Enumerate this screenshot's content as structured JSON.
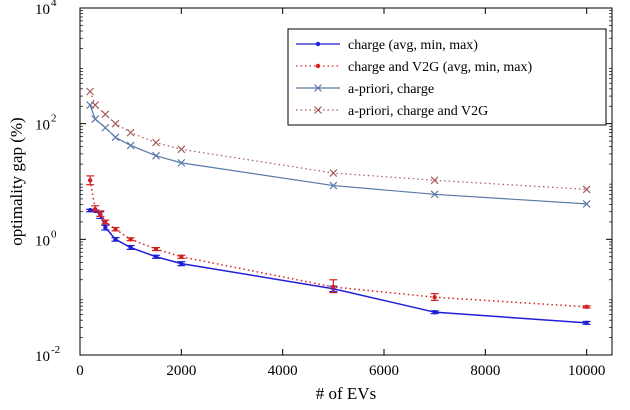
{
  "chart_data": {
    "type": "line",
    "xlabel": "# of EVs",
    "ylabel": "optimality gap (%)",
    "xlim": [
      0,
      10500
    ],
    "ylim": [
      0.01,
      10000
    ],
    "yscale": "log",
    "x_ticks": [
      {
        "value": 0,
        "label": "0"
      },
      {
        "value": 2000,
        "label": "2000"
      },
      {
        "value": 4000,
        "label": "4000"
      },
      {
        "value": 6000,
        "label": "6000"
      },
      {
        "value": 8000,
        "label": "8000"
      },
      {
        "value": 10000,
        "label": "10000"
      }
    ],
    "y_ticks": [
      {
        "value": 0.01,
        "base": "10",
        "exp": "-2"
      },
      {
        "value": 1,
        "base": "10",
        "exp": "0"
      },
      {
        "value": 100,
        "base": "10",
        "exp": "2"
      },
      {
        "value": 10000,
        "base": "10",
        "exp": "4"
      }
    ],
    "grid": false,
    "legend_position": "top-right",
    "series": [
      {
        "name": "charge (avg, min, max)",
        "color": "#1f1fd6",
        "line": "solid",
        "marker": "dot",
        "error_bars": true,
        "x": [
          200,
          300,
          400,
          500,
          700,
          1000,
          1500,
          2000,
          5000,
          7000,
          10000
        ],
        "y": [
          3.2,
          3.1,
          2.7,
          1.6,
          1.0,
          0.72,
          0.5,
          0.38,
          0.14,
          0.055,
          0.036
        ],
        "y_min": [
          3.0,
          3.0,
          2.3,
          1.45,
          0.93,
          0.67,
          0.47,
          0.35,
          0.125,
          0.052,
          0.034
        ],
        "y_max": [
          3.3,
          3.2,
          3.0,
          1.75,
          1.07,
          0.78,
          0.53,
          0.41,
          0.155,
          0.058,
          0.038
        ]
      },
      {
        "name": "charge and V2G (avg, min, max)",
        "color": "#d62020",
        "line": "dotted",
        "marker": "dot",
        "error_bars": true,
        "x": [
          200,
          300,
          400,
          500,
          700,
          1000,
          1500,
          2000,
          5000,
          7000,
          10000
        ],
        "y": [
          10.5,
          3.3,
          2.8,
          2.0,
          1.5,
          1.0,
          0.68,
          0.5,
          0.15,
          0.1,
          0.068
        ],
        "y_min": [
          8.8,
          3.1,
          2.5,
          1.85,
          1.4,
          0.95,
          0.64,
          0.47,
          0.12,
          0.088,
          0.065
        ],
        "y_max": [
          12.5,
          3.8,
          3.1,
          2.15,
          1.6,
          1.06,
          0.72,
          0.53,
          0.2,
          0.115,
          0.071
        ]
      },
      {
        "name": "a-priori, charge",
        "color": "#5a7aa8",
        "line": "solid",
        "marker": "x",
        "error_bars": false,
        "x": [
          200,
          300,
          500,
          700,
          1000,
          1500,
          2000,
          5000,
          7000,
          10000
        ],
        "y": [
          210,
          120,
          85,
          58,
          42,
          28,
          21,
          8.5,
          6.0,
          4.1
        ]
      },
      {
        "name": "a-priori, charge and V2G",
        "color": "#a85a5a",
        "line": "dotted",
        "marker": "x",
        "error_bars": false,
        "x": [
          200,
          300,
          500,
          700,
          1000,
          1500,
          2000,
          5000,
          7000,
          10000
        ],
        "y": [
          360,
          210,
          145,
          100,
          70,
          47,
          36,
          14,
          10.5,
          7.3
        ]
      }
    ]
  }
}
